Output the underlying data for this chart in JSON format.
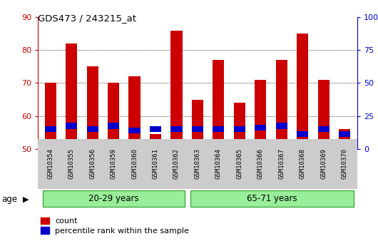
{
  "title": "GDS473 / 243215_at",
  "samples": [
    "GSM10354",
    "GSM10355",
    "GSM10356",
    "GSM10359",
    "GSM10360",
    "GSM10361",
    "GSM10362",
    "GSM10363",
    "GSM10364",
    "GSM10365",
    "GSM10366",
    "GSM10367",
    "GSM10368",
    "GSM10369",
    "GSM10370"
  ],
  "count_values": [
    70,
    82,
    75,
    70,
    72,
    54.5,
    86,
    65,
    77,
    64,
    71,
    77,
    85,
    71,
    56
  ],
  "percentile_values": [
    56,
    57,
    56,
    57,
    55.5,
    56,
    56,
    56,
    56,
    56,
    56.5,
    57,
    54.5,
    56,
    54.5
  ],
  "ylim_left": [
    50,
    90
  ],
  "ylim_right": [
    0,
    100
  ],
  "yticks_left": [
    50,
    60,
    70,
    80,
    90
  ],
  "yticks_right": [
    0,
    25,
    50,
    75,
    100
  ],
  "ytick_right_labels": [
    "0",
    "25",
    "50",
    "75",
    "100%"
  ],
  "bar_color_red": "#cc0000",
  "bar_color_blue": "#0000cc",
  "group1_label": "20-29 years",
  "group2_label": "65-71 years",
  "group1_indices": [
    0,
    1,
    2,
    3,
    4,
    5,
    6
  ],
  "group2_indices": [
    7,
    8,
    9,
    10,
    11,
    12,
    13,
    14
  ],
  "group_bg_color": "#99ee99",
  "group_border_color": "#44aa44",
  "legend_count_label": "count",
  "legend_percentile_label": "percentile rank within the sample",
  "age_label": "age",
  "bar_width": 0.55,
  "ybase": 50,
  "right_axis_color": "#0000cc",
  "left_axis_color": "#cc0000",
  "xticklabel_bg": "#cccccc",
  "pct_bar_height": 1.8
}
